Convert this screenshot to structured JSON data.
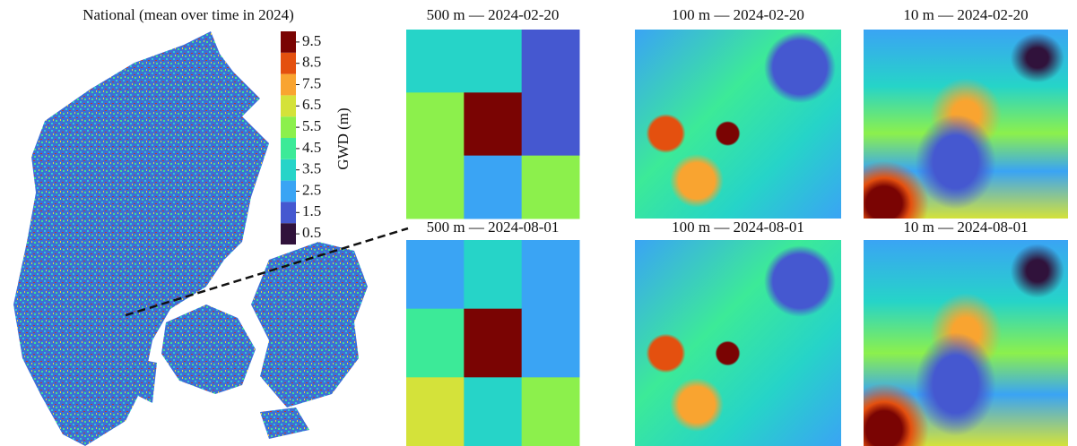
{
  "national": {
    "title": "National (mean over time in 2024)"
  },
  "colorbar": {
    "label": "GWD (m)",
    "ticks": [
      0.5,
      1.5,
      2.5,
      3.5,
      4.5,
      5.5,
      6.5,
      7.5,
      8.5,
      9.5
    ],
    "colors": [
      "#30123b",
      "#4558d0",
      "#3aa4f4",
      "#26d4c8",
      "#3cea98",
      "#8cf04c",
      "#d4e23a",
      "#f9a430",
      "#e4500f",
      "#7a0403"
    ]
  },
  "panels": [
    {
      "title": "500 m — 2024-02-20",
      "grid": [
        [
          4,
          4,
          1.5
        ],
        [
          5.5,
          9.5,
          1.5
        ],
        [
          6,
          2.5,
          5.5
        ]
      ]
    },
    {
      "title": "100 m — 2024-02-20"
    },
    {
      "title": "10 m — 2024-02-20"
    },
    {
      "title": "500 m — 2024-08-01",
      "grid": [
        [
          2.5,
          4,
          2.5
        ],
        [
          5,
          9.5,
          2.5
        ],
        [
          7,
          4,
          6
        ]
      ]
    },
    {
      "title": "100 m — 2024-08-01"
    },
    {
      "title": "10 m — 2024-08-01"
    }
  ]
}
